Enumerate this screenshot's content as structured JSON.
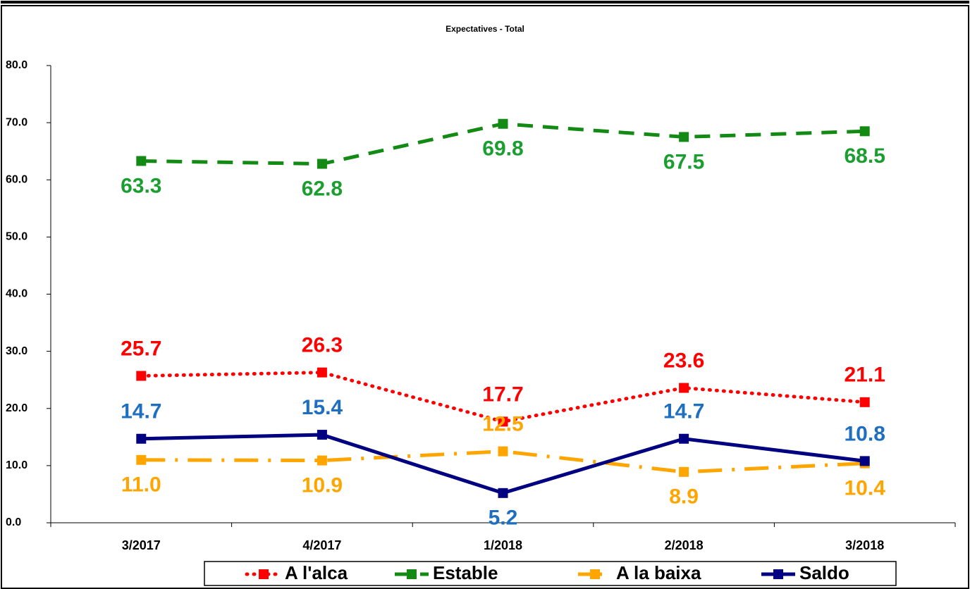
{
  "chart_data": {
    "type": "line",
    "title": "Expectatives - Total",
    "categories": [
      "3/2017",
      "4/2017",
      "1/2018",
      "2/2018",
      "3/2018"
    ],
    "ylim": [
      0,
      80
    ],
    "yticks": [
      {
        "value": 0,
        "label": "0.0"
      },
      {
        "value": 10,
        "label": "10.0"
      },
      {
        "value": 20,
        "label": "20.0"
      },
      {
        "value": 30,
        "label": "30.0"
      },
      {
        "value": 40,
        "label": "40.0"
      },
      {
        "value": 50,
        "label": "50.0"
      },
      {
        "value": 60,
        "label": "60.0"
      },
      {
        "value": 70,
        "label": "70.0"
      },
      {
        "value": 80,
        "label": "80.0"
      }
    ],
    "grid": false,
    "legend": "bottom",
    "series": [
      {
        "name": "A l'alca",
        "color": "#ff0000",
        "label_color": "#ff0000",
        "style": "dotted",
        "values": [
          25.7,
          26.3,
          17.7,
          23.6,
          21.1
        ]
      },
      {
        "name": "Estable",
        "color": "#138a13",
        "label_color": "#1a9e2f",
        "style": "dashed",
        "values": [
          63.3,
          62.8,
          69.8,
          67.5,
          68.5
        ]
      },
      {
        "name": "A la baixa",
        "color": "#ffa500",
        "label_color": "#ffa500",
        "style": "dashdot",
        "values": [
          11.0,
          10.9,
          12.5,
          8.9,
          10.4
        ],
        "value_labels": [
          "11.0",
          "10.9",
          "12.5",
          "8.9",
          "10.4"
        ]
      },
      {
        "name": "Saldo",
        "color": "#000080",
        "label_color": "#1f6fc0",
        "style": "solid",
        "values": [
          14.7,
          15.4,
          5.2,
          14.7,
          10.8
        ]
      }
    ]
  }
}
